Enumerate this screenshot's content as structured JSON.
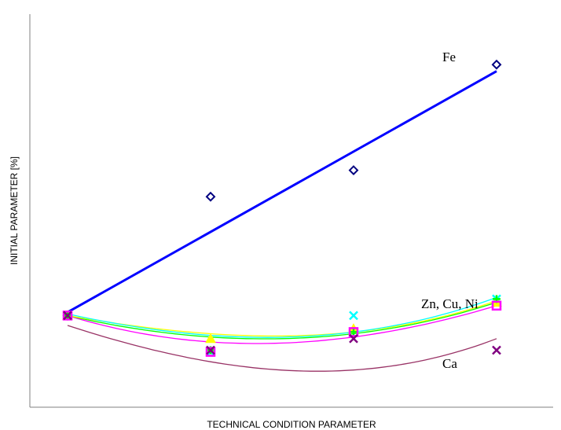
{
  "chart_data": {
    "type": "scatter",
    "title": "",
    "xlabel": "TECHNICAL CONDITION PARAMETER",
    "ylabel": "INITIAL PARAMETER [%]",
    "grid": false,
    "xlim": [
      0,
      3.5
    ],
    "ylim": [
      0,
      100
    ],
    "x": [
      0,
      1,
      2,
      3
    ],
    "annotations": [
      {
        "text": "Fe"
      },
      {
        "text": "Zn, Cu, Ni"
      },
      {
        "text": "Ca"
      }
    ],
    "series": [
      {
        "color": "#000080",
        "marker": "diamond",
        "values": [
          18,
          54,
          62,
          94
        ],
        "trend": {
          "kind": "linear",
          "color": "#0000ff",
          "values": [
            19,
            45,
            70,
            92
          ]
        }
      },
      {
        "color": "#00ffff",
        "marker": "x",
        "values": [
          18,
          7,
          18,
          23
        ],
        "trend": {
          "kind": "quadratic",
          "color": "#00ffff",
          "values": [
            18.5,
            12,
            13,
            23.5
          ]
        }
      },
      {
        "color": "#ffff00",
        "marker": "triangle",
        "values": [
          18,
          11,
          14,
          22
        ],
        "trend": {
          "kind": "quadratic",
          "color": "#ffff00",
          "values": [
            18,
            12.5,
            13,
            22.5
          ]
        }
      },
      {
        "color": "#00ff00",
        "marker": "plus",
        "values": [
          18,
          7.5,
          13,
          23
        ],
        "trend": {
          "kind": "quadratic",
          "color": "#00ff00",
          "values": [
            18,
            11.5,
            12.5,
            22
          ]
        }
      },
      {
        "color": "#ff00ff",
        "marker": "square",
        "values": [
          18,
          7,
          13,
          21
        ],
        "trend": {
          "kind": "quadratic",
          "color": "#ff00ff",
          "values": [
            18,
            10,
            11.5,
            21
          ]
        }
      },
      {
        "color": "#800080",
        "marker": "x",
        "values": [
          18,
          7.5,
          11,
          7.5
        ],
        "trend": {
          "kind": "quadratic",
          "color": "#993366",
          "values": [
            15,
            4,
            1.5,
            11
          ]
        }
      }
    ]
  }
}
